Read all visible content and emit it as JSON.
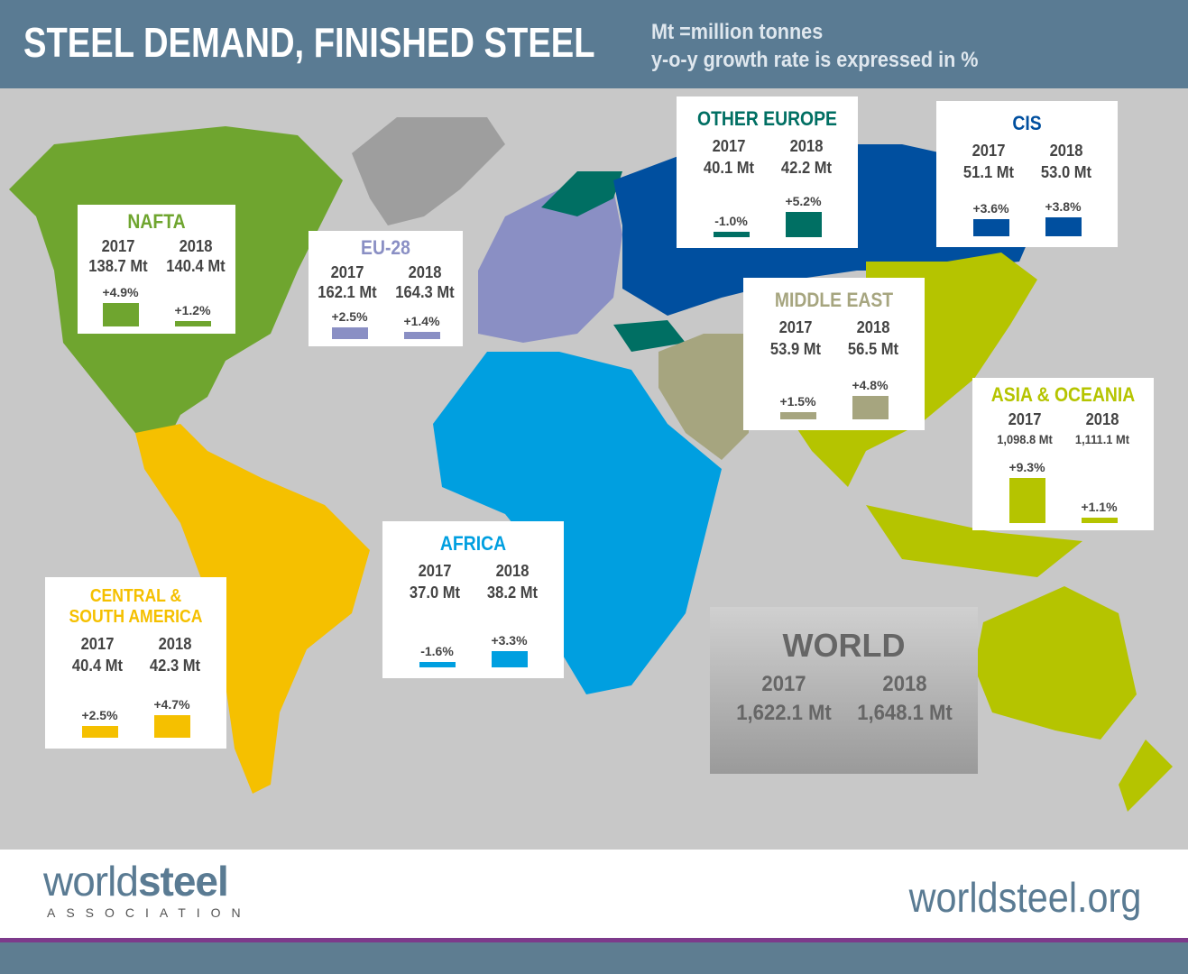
{
  "header": {
    "title": "STEEL DEMAND, FINISHED STEEL",
    "note_units": "Mt =million tonnes",
    "note_growth": "y-o-y growth rate is expressed in %"
  },
  "regions": [
    {
      "name": "NAFTA",
      "color": "#6fa52f",
      "y2017": "138.7 Mt",
      "y2018": "140.4 Mt",
      "g2017": 4.9,
      "g2018": 1.2,
      "g2017_label": "+4.9%",
      "g2018_label": "+1.2%"
    },
    {
      "name": "EU-28",
      "color": "#8a8fc4",
      "y2017": "162.1 Mt",
      "y2018": "164.3 Mt",
      "g2017": 2.5,
      "g2018": 1.4,
      "g2017_label": "+2.5%",
      "g2018_label": "+1.4%"
    },
    {
      "name": "OTHER EUROPE",
      "color": "#006f63",
      "y2017": "40.1 Mt",
      "y2018": "42.2 Mt",
      "g2017": -1.0,
      "g2018": 5.2,
      "g2017_label": "-1.0%",
      "g2018_label": "+5.2%"
    },
    {
      "name": "CIS",
      "color": "#004f9f",
      "y2017": "51.1 Mt",
      "y2018": "53.0 Mt",
      "g2017": 3.6,
      "g2018": 3.8,
      "g2017_label": "+3.6%",
      "g2018_label": "+3.8%"
    },
    {
      "name": "MIDDLE EAST",
      "color": "#a6a57f",
      "y2017": "53.9 Mt",
      "y2018": "56.5 Mt",
      "g2017": 1.5,
      "g2018": 4.8,
      "g2017_label": "+1.5%",
      "g2018_label": "+4.8%"
    },
    {
      "name": "ASIA & OCEANIA",
      "color": "#b5c400",
      "y2017": "1,098.8 Mt",
      "y2018": "1,111.1 Mt",
      "g2017": 9.3,
      "g2018": 1.1,
      "g2017_label": "+9.3%",
      "g2018_label": "+1.1%"
    },
    {
      "name": "AFRICA",
      "color": "#009fe0",
      "y2017": "37.0 Mt",
      "y2018": "38.2 Mt",
      "g2017": -1.6,
      "g2018": 3.3,
      "g2017_label": "-1.6%",
      "g2018_label": "+3.3%"
    },
    {
      "name": "CENTRAL & SOUTH AMERICA",
      "color": "#f5c000",
      "y2017": "40.4 Mt",
      "y2018": "42.3 Mt",
      "g2017": 2.5,
      "g2018": 4.7,
      "g2017_label": "+2.5%",
      "g2018_label": "+4.7%"
    }
  ],
  "years": [
    "2017",
    "2018"
  ],
  "world": {
    "name": "WORLD",
    "y2017": "1,622.1 Mt",
    "y2018": "1,648.1 Mt"
  },
  "footer": {
    "logo_light": "world",
    "logo_bold": "steel",
    "logo_sub": "ASSOCIATION",
    "url": "worldsteel.org"
  }
}
